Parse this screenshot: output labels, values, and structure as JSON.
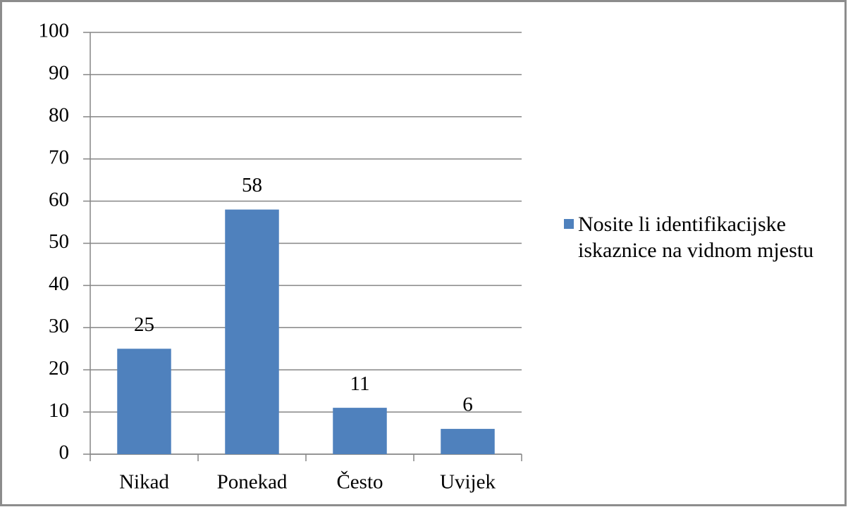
{
  "chart_data": {
    "type": "bar",
    "categories": [
      "Nikad",
      "Ponekad",
      "Često",
      "Uvijek"
    ],
    "series": [
      {
        "name": "Nosite li identifikacijske iskaznice na vidnom mjestu",
        "color": "#4f81bd",
        "values": [
          25,
          58,
          11,
          6
        ]
      }
    ],
    "ylim": [
      0,
      100
    ],
    "yticks": [
      0,
      10,
      20,
      30,
      40,
      50,
      60,
      70,
      80,
      90,
      100
    ],
    "grid": true,
    "legend": "right"
  }
}
